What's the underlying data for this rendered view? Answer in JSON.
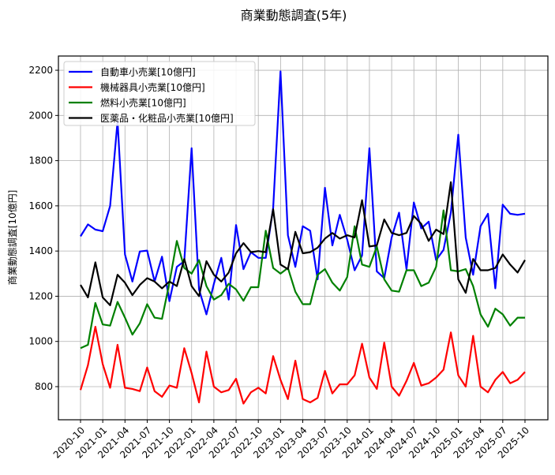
{
  "chart_data": {
    "type": "line",
    "title": "商業動態調査(5年)",
    "xlabel": "",
    "ylabel": "商業動態調査[10億円]",
    "ylim": [
      650,
      2260
    ],
    "yticks": [
      800,
      1000,
      1200,
      1400,
      1600,
      1800,
      2000,
      2200
    ],
    "xticks": [
      "2020-10",
      "2021-01",
      "2021-04",
      "2021-07",
      "2021-10",
      "2022-01",
      "2022-04",
      "2022-07",
      "2022-10",
      "2023-01",
      "2023-04",
      "2023-07",
      "2023-10",
      "2024-01",
      "2024-04",
      "2024-07",
      "2024-10",
      "2025-01",
      "2025-04",
      "2025-07",
      "2025-10"
    ],
    "x_start": "2020-10",
    "x_step": "monthly",
    "grid": true,
    "legend_position": "upper left",
    "series": [
      {
        "name": "自動車小売業[10億円]",
        "color": "#0000ff",
        "values": [
          1465,
          1518,
          1495,
          1488,
          1600,
          1975,
          1385,
          1265,
          1398,
          1402,
          1265,
          1375,
          1178,
          1330,
          1355,
          1855,
          1230,
          1120,
          1255,
          1370,
          1185,
          1515,
          1320,
          1395,
          1370,
          1370,
          1590,
          2195,
          1470,
          1330,
          1510,
          1490,
          1275,
          1680,
          1425,
          1560,
          1450,
          1315,
          1380,
          1855,
          1310,
          1280,
          1460,
          1570,
          1320,
          1615,
          1500,
          1530,
          1360,
          1405,
          1570,
          1915,
          1460,
          1295,
          1510,
          1565,
          1235,
          1605,
          1565,
          1560,
          1565
        ]
      },
      {
        "name": "機械器具小売業[10億円]",
        "color": "#ff0000",
        "values": [
          785,
          895,
          1065,
          900,
          795,
          985,
          795,
          790,
          780,
          885,
          780,
          755,
          805,
          795,
          970,
          860,
          730,
          955,
          800,
          775,
          785,
          835,
          725,
          775,
          795,
          770,
          935,
          830,
          745,
          915,
          745,
          730,
          750,
          870,
          770,
          810,
          810,
          850,
          990,
          840,
          790,
          995,
          800,
          760,
          825,
          905,
          805,
          815,
          840,
          875,
          1040,
          850,
          800,
          1025,
          800,
          775,
          830,
          865,
          815,
          830,
          865
        ]
      },
      {
        "name": "燃料小売業[10億円]",
        "color": "#008000",
        "values": [
          970,
          985,
          1170,
          1075,
          1070,
          1175,
          1105,
          1030,
          1080,
          1165,
          1105,
          1100,
          1260,
          1445,
          1325,
          1300,
          1360,
          1245,
          1185,
          1205,
          1255,
          1230,
          1180,
          1240,
          1240,
          1490,
          1325,
          1300,
          1325,
          1220,
          1165,
          1165,
          1295,
          1320,
          1260,
          1225,
          1285,
          1510,
          1340,
          1330,
          1420,
          1275,
          1225,
          1220,
          1315,
          1315,
          1245,
          1260,
          1330,
          1580,
          1315,
          1310,
          1320,
          1245,
          1120,
          1065,
          1145,
          1120,
          1070,
          1105,
          1105
        ]
      },
      {
        "name": "医薬品・化粧品小売業[10億円]",
        "color": "#000000",
        "values": [
          1250,
          1195,
          1350,
          1195,
          1160,
          1295,
          1260,
          1205,
          1250,
          1280,
          1265,
          1235,
          1265,
          1245,
          1365,
          1245,
          1200,
          1355,
          1295,
          1265,
          1305,
          1390,
          1435,
          1395,
          1400,
          1395,
          1585,
          1340,
          1320,
          1485,
          1390,
          1395,
          1415,
          1455,
          1480,
          1455,
          1470,
          1460,
          1625,
          1420,
          1425,
          1540,
          1480,
          1470,
          1480,
          1555,
          1520,
          1445,
          1495,
          1475,
          1705,
          1275,
          1215,
          1365,
          1315,
          1315,
          1325,
          1385,
          1340,
          1305,
          1360
        ]
      }
    ]
  }
}
